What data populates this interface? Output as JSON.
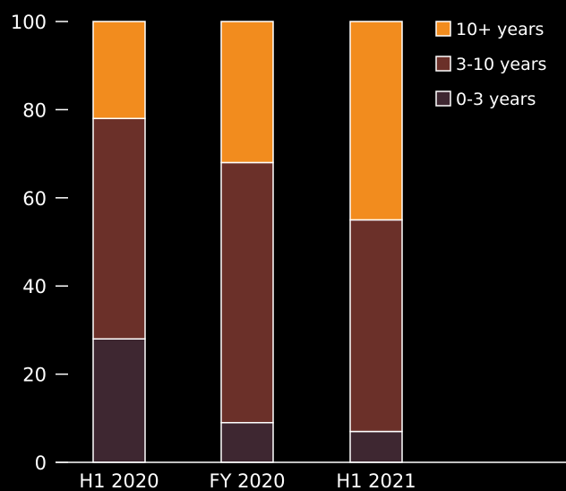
{
  "chart_data": {
    "type": "bar",
    "stacked": true,
    "categories": [
      "H1 2020",
      "FY 2020",
      "H1 2021"
    ],
    "series": [
      {
        "name": "0-3 years",
        "color": "#3e2731",
        "values": [
          28,
          9,
          7
        ]
      },
      {
        "name": "3-10 years",
        "color": "#6b3029",
        "values": [
          50,
          59,
          48
        ]
      },
      {
        "name": "10+ years",
        "color": "#f28c1e",
        "values": [
          22,
          32,
          45
        ]
      }
    ],
    "legend_order": [
      "10+ years",
      "3-10 years",
      "0-3 years"
    ],
    "ylim": [
      0,
      100
    ],
    "yticks": [
      0,
      20,
      40,
      60,
      80,
      100
    ],
    "legend_position": "top-right",
    "grid": false,
    "bar_outline_color": "#ffffff",
    "background": "#000000"
  }
}
